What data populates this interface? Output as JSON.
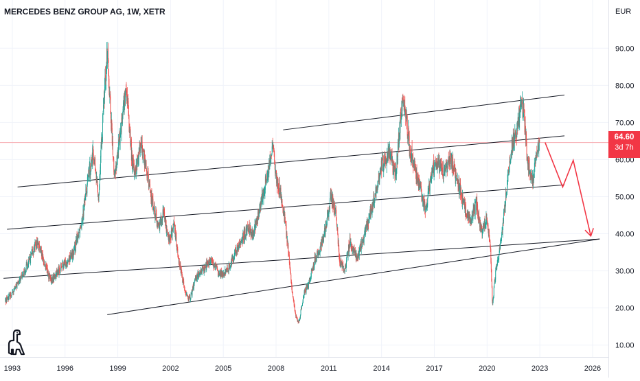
{
  "header": {
    "title": "MERCEDES BENZ GROUP AG, 1W, XETR",
    "currency": "EUR"
  },
  "price_tag": {
    "price": "64.60",
    "countdown": "3d 7h"
  },
  "colors": {
    "up": "#26a69a",
    "down": "#ef5350",
    "channel": "#131722",
    "arrow": "#f23645",
    "price_line": "#f7a8ae"
  },
  "logo": {
    "icon": "tradingview-dino-icon"
  },
  "chart_data": {
    "type": "candlestick",
    "title": "MERCEDES BENZ GROUP AG, 1W, XETR",
    "xlabel": "",
    "ylabel": "",
    "currency": "EUR",
    "x_ticks": [
      "1993",
      "1996",
      "1999",
      "2002",
      "2005",
      "2008",
      "2011",
      "2014",
      "2017",
      "2020",
      "2023",
      "2026"
    ],
    "y_ticks": [
      "10.00",
      "20.00",
      "30.00",
      "40.00",
      "50.00",
      "60.00",
      "70.00",
      "80.00",
      "90.00"
    ],
    "xlim": [
      1992.3,
      2026.9
    ],
    "ylim": [
      6.8,
      103
    ],
    "last_price": 64.6,
    "price_series": [
      [
        1992.6,
        22
      ],
      [
        1993.0,
        24
      ],
      [
        1993.5,
        28
      ],
      [
        1994.0,
        33
      ],
      [
        1994.4,
        38
      ],
      [
        1994.9,
        31
      ],
      [
        1995.2,
        27
      ],
      [
        1995.6,
        30
      ],
      [
        1996.0,
        32
      ],
      [
        1996.5,
        35
      ],
      [
        1997.0,
        45
      ],
      [
        1997.3,
        55
      ],
      [
        1997.6,
        62
      ],
      [
        1997.9,
        50
      ],
      [
        1998.2,
        75
      ],
      [
        1998.4,
        90
      ],
      [
        1998.6,
        72
      ],
      [
        1998.8,
        55
      ],
      [
        1999.0,
        62
      ],
      [
        1999.3,
        74
      ],
      [
        1999.5,
        78
      ],
      [
        1999.8,
        60
      ],
      [
        2000.0,
        56
      ],
      [
        2000.3,
        65
      ],
      [
        2000.6,
        58
      ],
      [
        2000.9,
        50
      ],
      [
        2001.3,
        42
      ],
      [
        2001.6,
        46
      ],
      [
        2001.9,
        38
      ],
      [
        2002.2,
        42
      ],
      [
        2002.5,
        32
      ],
      [
        2002.8,
        25
      ],
      [
        2003.1,
        22
      ],
      [
        2003.4,
        28
      ],
      [
        2003.8,
        30
      ],
      [
        2004.3,
        33
      ],
      [
        2004.8,
        29
      ],
      [
        2005.2,
        30
      ],
      [
        2005.6,
        34
      ],
      [
        2006.0,
        38
      ],
      [
        2006.4,
        42
      ],
      [
        2006.7,
        40
      ],
      [
        2007.0,
        45
      ],
      [
        2007.3,
        52
      ],
      [
        2007.6,
        58
      ],
      [
        2007.8,
        64
      ],
      [
        2008.0,
        55
      ],
      [
        2008.3,
        50
      ],
      [
        2008.6,
        40
      ],
      [
        2008.9,
        25
      ],
      [
        2009.1,
        18
      ],
      [
        2009.3,
        16
      ],
      [
        2009.6,
        24
      ],
      [
        2009.9,
        27
      ],
      [
        2010.2,
        33
      ],
      [
        2010.5,
        36
      ],
      [
        2010.8,
        41
      ],
      [
        2011.1,
        50
      ],
      [
        2011.4,
        46
      ],
      [
        2011.6,
        33
      ],
      [
        2011.9,
        30
      ],
      [
        2012.2,
        38
      ],
      [
        2012.6,
        33
      ],
      [
        2012.9,
        38
      ],
      [
        2013.3,
        44
      ],
      [
        2013.7,
        52
      ],
      [
        2014.0,
        58
      ],
      [
        2014.4,
        62
      ],
      [
        2014.8,
        56
      ],
      [
        2015.1,
        72
      ],
      [
        2015.3,
        76
      ],
      [
        2015.6,
        63
      ],
      [
        2015.9,
        58
      ],
      [
        2016.2,
        52
      ],
      [
        2016.5,
        46
      ],
      [
        2016.8,
        55
      ],
      [
        2017.1,
        60
      ],
      [
        2017.5,
        56
      ],
      [
        2017.9,
        60
      ],
      [
        2018.1,
        58
      ],
      [
        2018.4,
        53
      ],
      [
        2018.8,
        46
      ],
      [
        2019.1,
        44
      ],
      [
        2019.4,
        48
      ],
      [
        2019.7,
        40
      ],
      [
        2020.0,
        45
      ],
      [
        2020.2,
        35
      ],
      [
        2020.3,
        21
      ],
      [
        2020.5,
        30
      ],
      [
        2020.8,
        38
      ],
      [
        2021.1,
        52
      ],
      [
        2021.4,
        64
      ],
      [
        2021.7,
        68
      ],
      [
        2021.9,
        76
      ],
      [
        2022.1,
        72
      ],
      [
        2022.3,
        60
      ],
      [
        2022.6,
        54
      ],
      [
        2022.8,
        62
      ],
      [
        2023.0,
        64.6
      ]
    ],
    "drawings": {
      "channel_lines": [
        [
          [
            1992.5,
            28
          ],
          [
            2026.4,
            38.6
          ]
        ],
        [
          [
            1998.4,
            18.2
          ],
          [
            2026.4,
            38.6
          ]
        ],
        [
          [
            1992.7,
            41.2
          ],
          [
            2024.4,
            53.2
          ]
        ],
        [
          [
            1993.3,
            52.6
          ],
          [
            2024.4,
            66.4
          ]
        ],
        [
          [
            2008.4,
            68
          ],
          [
            2024.4,
            77.4
          ]
        ]
      ],
      "projection_arrow": [
        [
          2023.3,
          64.6
        ],
        [
          2024.3,
          52.6
        ],
        [
          2024.9,
          59.8
        ],
        [
          2025.9,
          39.4
        ]
      ]
    }
  }
}
